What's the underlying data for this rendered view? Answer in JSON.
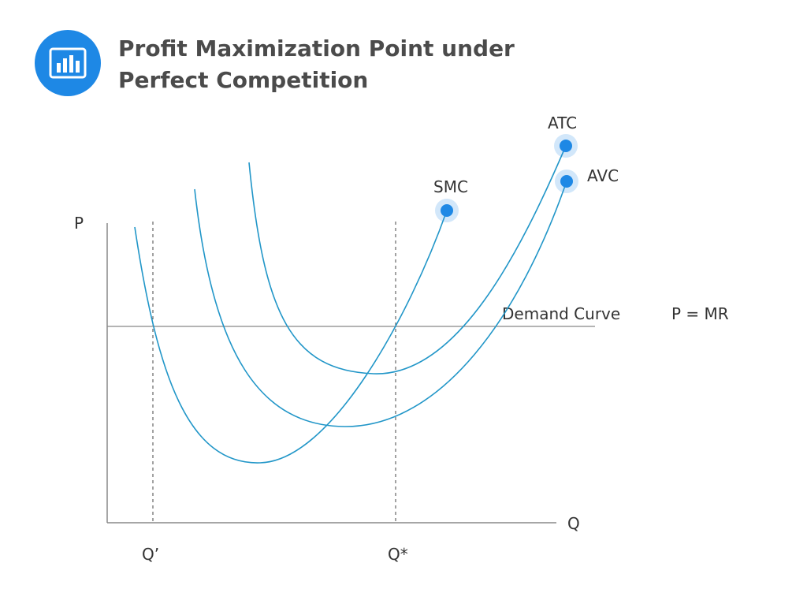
{
  "header": {
    "icon": "bar-chart-icon",
    "title_line1": "Profit Maximization Point under",
    "title_line2": "Perfect Competition"
  },
  "diagram": {
    "axes": {
      "y_label": "P",
      "x_label": "Q"
    },
    "price_line": {
      "label_left": "Demand Curve",
      "label_right": "P = MR"
    },
    "quantity_markers": [
      {
        "label": "Q’"
      },
      {
        "label": "Q*"
      }
    ],
    "curves": [
      {
        "label": "SMC"
      },
      {
        "label": "ATC"
      },
      {
        "label": "AVC"
      }
    ],
    "colors": {
      "curve": "#2196C8",
      "dot": "#1E88E5",
      "axis": "#888888",
      "text": "#333333"
    }
  }
}
